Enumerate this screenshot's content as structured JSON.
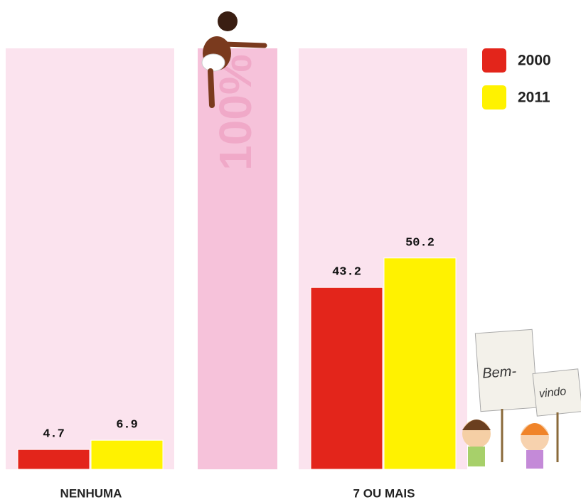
{
  "chart_data": {
    "type": "bar",
    "categories": [
      "NENHUMA",
      "7 OU MAIS"
    ],
    "series": [
      {
        "name": "2000",
        "color": "#e3251b",
        "values": [
          4.7,
          43.2
        ]
      },
      {
        "name": "2011",
        "color": "#fff200",
        "values": [
          6.9,
          50.2
        ]
      }
    ],
    "ylim": [
      0,
      100
    ],
    "full_scale_label": "100%",
    "legend": "top-right",
    "annotations": [
      "Bem-",
      "vindo"
    ]
  }
}
